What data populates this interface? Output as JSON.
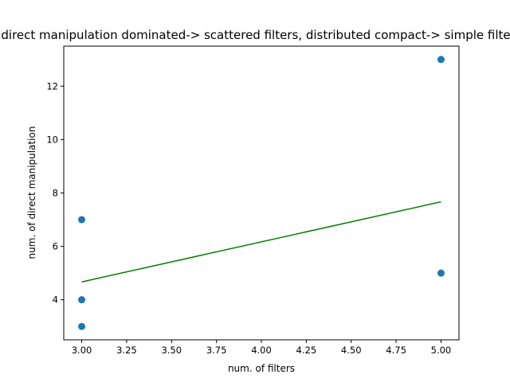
{
  "chart_data": {
    "type": "scatter",
    "title": "direct manipulation dominated-> scattered filters, distributed compact-> simple filters",
    "xlabel": "num. of filters",
    "ylabel": "num. of direct manipulation",
    "xlim": [
      2.9,
      5.1
    ],
    "ylim": [
      2.5,
      13.5
    ],
    "x_ticks": [
      3.0,
      3.25,
      3.5,
      3.75,
      4.0,
      4.25,
      4.5,
      4.75,
      5.0
    ],
    "x_tick_labels": [
      "3.00",
      "3.25",
      "3.50",
      "3.75",
      "4.00",
      "4.25",
      "4.50",
      "4.75",
      "5.00"
    ],
    "y_ticks": [
      4,
      6,
      8,
      10,
      12
    ],
    "y_tick_labels": [
      "4",
      "6",
      "8",
      "10",
      "12"
    ],
    "grid": false,
    "series": [
      {
        "kind": "scatter",
        "color": "#1f77b4",
        "points": [
          {
            "x": 3,
            "y": 7
          },
          {
            "x": 3,
            "y": 4
          },
          {
            "x": 3,
            "y": 3
          },
          {
            "x": 5,
            "y": 13
          },
          {
            "x": 5,
            "y": 5
          }
        ]
      },
      {
        "kind": "line",
        "color": "#008000",
        "points": [
          {
            "x": 3,
            "y": 4.67
          },
          {
            "x": 5,
            "y": 7.67
          }
        ]
      }
    ]
  }
}
